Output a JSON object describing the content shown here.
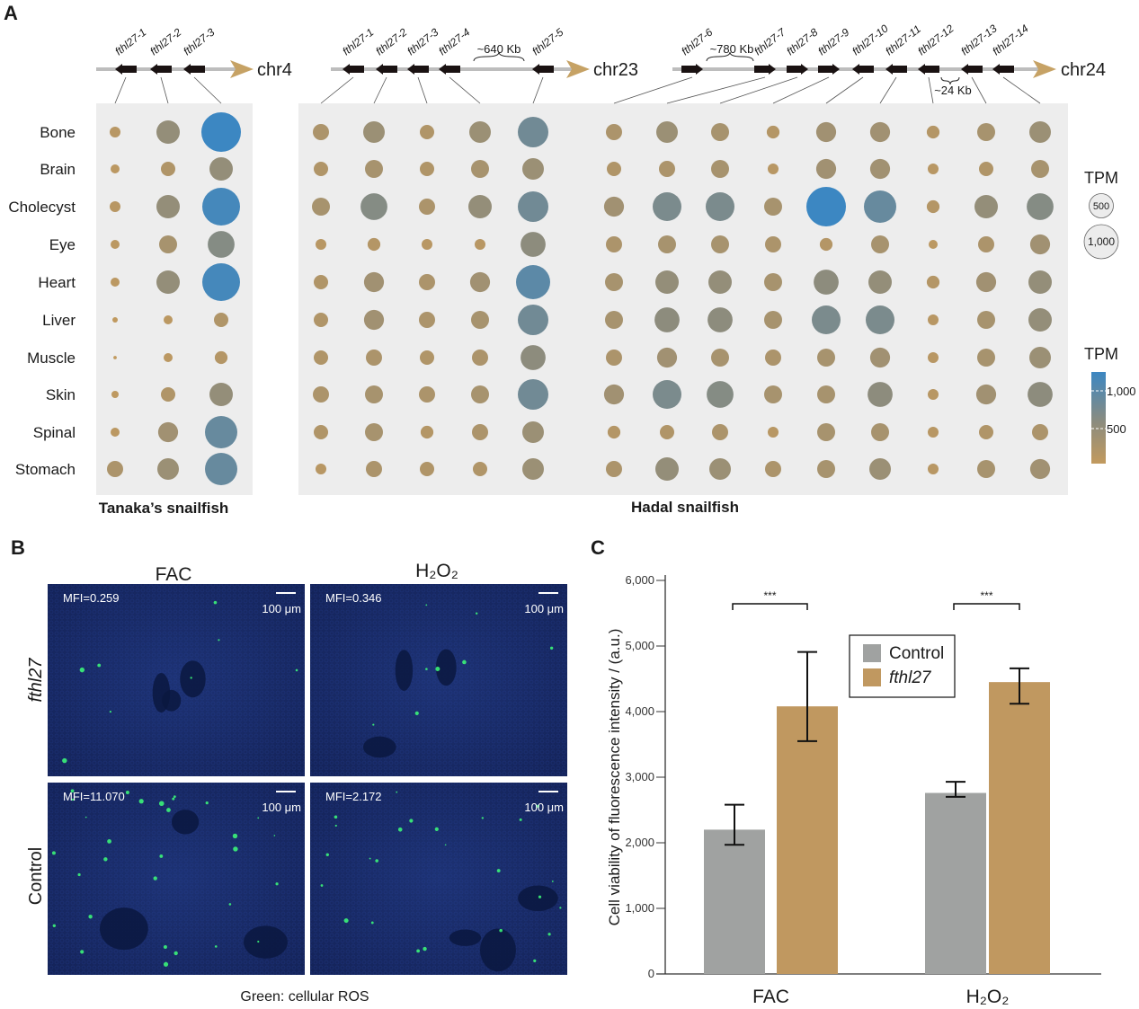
{
  "panels": {
    "a": "A",
    "b": "B",
    "c": "C"
  },
  "chart_data": [
    {
      "type": "scatter",
      "subtype": "dot-plot",
      "tissues": [
        "Bone",
        "Brain",
        "Cholecyst",
        "Eye",
        "Heart",
        "Liver",
        "Muscle",
        "Skin",
        "Spinal",
        "Stomach"
      ],
      "groups": [
        {
          "name": "Tanaka’s snailfish",
          "chromosome": "chr4",
          "genes": [
            "fthl27-1",
            "fthl27-2",
            "fthl27-3"
          ],
          "gene_direction": [
            "left",
            "left",
            "left"
          ],
          "tpm": [
            [
              100,
              470,
              1340
            ],
            [
              70,
              180,
              470
            ],
            [
              100,
              470,
              1220
            ],
            [
              70,
              280,
              620
            ],
            [
              70,
              470,
              1220
            ],
            [
              25,
              70,
              180
            ],
            [
              10,
              70,
              140
            ],
            [
              45,
              180,
              470
            ],
            [
              70,
              340,
              900
            ],
            [
              225,
              400,
              900
            ]
          ]
        },
        {
          "name": "Hadal snailfish",
          "chromosomes": [
            {
              "name": "chr23",
              "genes": [
                "fthl27-1",
                "fthl27-2",
                "fthl27-3",
                "fthl27-4",
                "fthl27-5"
              ],
              "gene_direction": [
                "left",
                "left",
                "left",
                "left",
                "left"
              ],
              "gap_label": "~640 Kb"
            },
            {
              "name": "chr24",
              "genes": [
                "fthl27-6",
                "fthl27-7",
                "fthl27-8",
                "fthl27-9",
                "fthl27-10",
                "fthl27-11",
                "fthl27-12",
                "fthl27-13",
                "fthl27-14"
              ],
              "gene_direction": [
                "right",
                "right",
                "right",
                "right",
                "left",
                "left",
                "left",
                "left",
                "left"
              ],
              "gap_label": "~780 Kb",
              "gap_label_2": "~24 Kb"
            }
          ],
          "tpm": [
            [
              225,
              400,
              180,
              400,
              800,
              225,
              400,
              280,
              140,
              340,
              340,
              140,
              280,
              400
            ],
            [
              180,
              280,
              180,
              280,
              400,
              180,
              225,
              280,
              100,
              340,
              340,
              100,
              180,
              280
            ],
            [
              280,
              620,
              225,
              470,
              800,
              340,
              710,
              710,
              280,
              1340,
              900,
              140,
              470,
              620
            ],
            [
              100,
              140,
              100,
              100,
              540,
              225,
              280,
              280,
              225,
              140,
              280,
              70,
              225,
              340
            ],
            [
              180,
              340,
              225,
              340,
              1000,
              280,
              470,
              470,
              280,
              540,
              470,
              140,
              340,
              470
            ],
            [
              180,
              340,
              225,
              280,
              800,
              280,
              540,
              540,
              280,
              710,
              710,
              100,
              280,
              470
            ],
            [
              180,
              225,
              180,
              225,
              540,
              225,
              340,
              280,
              225,
              280,
              340,
              100,
              280,
              400
            ],
            [
              225,
              280,
              225,
              280,
              800,
              340,
              710,
              620,
              280,
              280,
              540,
              100,
              340,
              540
            ],
            [
              180,
              280,
              140,
              225,
              400,
              140,
              180,
              225,
              100,
              280,
              280,
              100,
              180,
              225
            ],
            [
              100,
              225,
              180,
              180,
              400,
              225,
              470,
              400,
              225,
              280,
              400,
              100,
              280,
              340
            ]
          ]
        }
      ],
      "size_legend": {
        "title": "TPM",
        "values": [
          "500",
          "1,000"
        ]
      },
      "color_legend": {
        "title": "TPM",
        "ticks": [
          "1,000",
          "500"
        ],
        "colors": [
          "#c29a5e",
          "#8c8c7e",
          "#3c87c2"
        ]
      }
    },
    {
      "type": "bar",
      "categories": [
        "FAC",
        "H₂O₂"
      ],
      "series": [
        {
          "name": "Control",
          "color": "#a0a2a1",
          "values": [
            2200,
            2760
          ],
          "error_low": [
            1970,
            2700
          ],
          "error_high": [
            2580,
            2930
          ]
        },
        {
          "name": "fthl27",
          "color": "#c09860",
          "values": [
            4080,
            4450
          ],
          "error_low": [
            3550,
            4120
          ],
          "error_high": [
            4910,
            4660
          ]
        }
      ],
      "ylabel": "Cell viability of fluorescence intensity / (a.u.)",
      "ylim": [
        0,
        6000
      ],
      "yticks": [
        "0",
        "1,000",
        "2,000",
        "3,000",
        "4,000",
        "5,000",
        "6,000"
      ],
      "significance": [
        "***",
        "***"
      ],
      "legend": "top-center",
      "grid": false
    }
  ],
  "panel_b": {
    "columns": [
      "FAC",
      "H₂O₂"
    ],
    "rows": [
      "fthl27",
      "Control"
    ],
    "mfi": [
      [
        "MFI=0.259",
        "MFI=0.346"
      ],
      [
        "MFI=11.070",
        "MFI=2.172"
      ]
    ],
    "scale_bar": "100 μm",
    "caption": "Green: cellular ROS"
  }
}
